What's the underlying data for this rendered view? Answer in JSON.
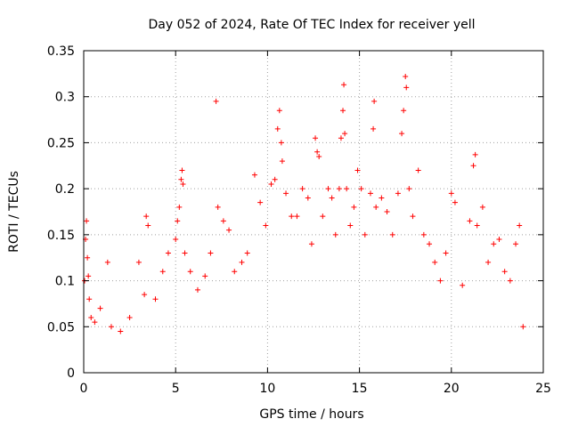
{
  "chart_data": {
    "type": "scatter",
    "title": "Day 052 of 2024, Rate Of TEC Index for receiver yell",
    "xlabel": "GPS time / hours",
    "ylabel": "ROTI / TECUs",
    "xlim": [
      0,
      25
    ],
    "ylim": [
      0,
      0.35
    ],
    "x_ticks": [
      0,
      5,
      10,
      15,
      20,
      25
    ],
    "x_tick_labels": [
      "0",
      "5",
      "10",
      "15",
      "20",
      "25"
    ],
    "y_ticks": [
      0,
      0.05,
      0.1,
      0.15,
      0.2,
      0.25,
      0.3,
      0.35
    ],
    "y_tick_labels": [
      "0",
      "0.05",
      "0.1",
      "0.15",
      "0.2",
      "0.25",
      "0.3",
      "0.35"
    ],
    "grid": true,
    "marker": "+",
    "color": "#ff0000",
    "series": [
      {
        "name": "ROTI",
        "points": [
          [
            0.05,
            0.1
          ],
          [
            0.1,
            0.145
          ],
          [
            0.15,
            0.165
          ],
          [
            0.2,
            0.125
          ],
          [
            0.25,
            0.105
          ],
          [
            0.3,
            0.08
          ],
          [
            0.4,
            0.06
          ],
          [
            0.6,
            0.055
          ],
          [
            0.9,
            0.07
          ],
          [
            1.3,
            0.12
          ],
          [
            1.5,
            0.05
          ],
          [
            2.0,
            0.045
          ],
          [
            2.5,
            0.06
          ],
          [
            3.0,
            0.12
          ],
          [
            3.3,
            0.085
          ],
          [
            3.4,
            0.17
          ],
          [
            3.5,
            0.16
          ],
          [
            3.9,
            0.08
          ],
          [
            4.3,
            0.11
          ],
          [
            4.6,
            0.13
          ],
          [
            5.0,
            0.145
          ],
          [
            5.1,
            0.165
          ],
          [
            5.2,
            0.18
          ],
          [
            5.3,
            0.21
          ],
          [
            5.35,
            0.22
          ],
          [
            5.4,
            0.205
          ],
          [
            5.5,
            0.13
          ],
          [
            5.8,
            0.11
          ],
          [
            6.2,
            0.09
          ],
          [
            6.6,
            0.105
          ],
          [
            6.9,
            0.13
          ],
          [
            7.2,
            0.295
          ],
          [
            7.3,
            0.18
          ],
          [
            7.6,
            0.165
          ],
          [
            7.9,
            0.155
          ],
          [
            8.2,
            0.11
          ],
          [
            8.6,
            0.12
          ],
          [
            8.9,
            0.13
          ],
          [
            9.3,
            0.215
          ],
          [
            9.6,
            0.185
          ],
          [
            9.9,
            0.16
          ],
          [
            10.2,
            0.205
          ],
          [
            10.4,
            0.21
          ],
          [
            10.55,
            0.265
          ],
          [
            10.65,
            0.285
          ],
          [
            10.75,
            0.25
          ],
          [
            10.8,
            0.23
          ],
          [
            11.0,
            0.195
          ],
          [
            11.3,
            0.17
          ],
          [
            11.6,
            0.17
          ],
          [
            11.9,
            0.2
          ],
          [
            12.2,
            0.19
          ],
          [
            12.4,
            0.14
          ],
          [
            12.6,
            0.255
          ],
          [
            12.7,
            0.24
          ],
          [
            12.8,
            0.235
          ],
          [
            13.0,
            0.17
          ],
          [
            13.3,
            0.2
          ],
          [
            13.5,
            0.19
          ],
          [
            13.7,
            0.15
          ],
          [
            13.9,
            0.2
          ],
          [
            14.0,
            0.255
          ],
          [
            14.1,
            0.285
          ],
          [
            14.15,
            0.313
          ],
          [
            14.2,
            0.26
          ],
          [
            14.3,
            0.2
          ],
          [
            14.5,
            0.16
          ],
          [
            14.7,
            0.18
          ],
          [
            14.9,
            0.22
          ],
          [
            15.1,
            0.2
          ],
          [
            15.3,
            0.15
          ],
          [
            15.6,
            0.195
          ],
          [
            15.75,
            0.265
          ],
          [
            15.8,
            0.295
          ],
          [
            15.9,
            0.18
          ],
          [
            16.2,
            0.19
          ],
          [
            16.5,
            0.175
          ],
          [
            16.8,
            0.15
          ],
          [
            17.1,
            0.195
          ],
          [
            17.3,
            0.26
          ],
          [
            17.4,
            0.285
          ],
          [
            17.5,
            0.322
          ],
          [
            17.55,
            0.31
          ],
          [
            17.7,
            0.2
          ],
          [
            17.9,
            0.17
          ],
          [
            18.2,
            0.22
          ],
          [
            18.5,
            0.15
          ],
          [
            18.8,
            0.14
          ],
          [
            19.1,
            0.12
          ],
          [
            19.4,
            0.1
          ],
          [
            19.7,
            0.13
          ],
          [
            20.0,
            0.195
          ],
          [
            20.2,
            0.185
          ],
          [
            20.6,
            0.095
          ],
          [
            21.0,
            0.165
          ],
          [
            21.2,
            0.225
          ],
          [
            21.3,
            0.237
          ],
          [
            21.4,
            0.16
          ],
          [
            21.7,
            0.18
          ],
          [
            22.0,
            0.12
          ],
          [
            22.3,
            0.14
          ],
          [
            22.6,
            0.145
          ],
          [
            22.9,
            0.11
          ],
          [
            23.2,
            0.1
          ],
          [
            23.5,
            0.14
          ],
          [
            23.7,
            0.16
          ],
          [
            23.9,
            0.05
          ]
        ]
      }
    ]
  }
}
